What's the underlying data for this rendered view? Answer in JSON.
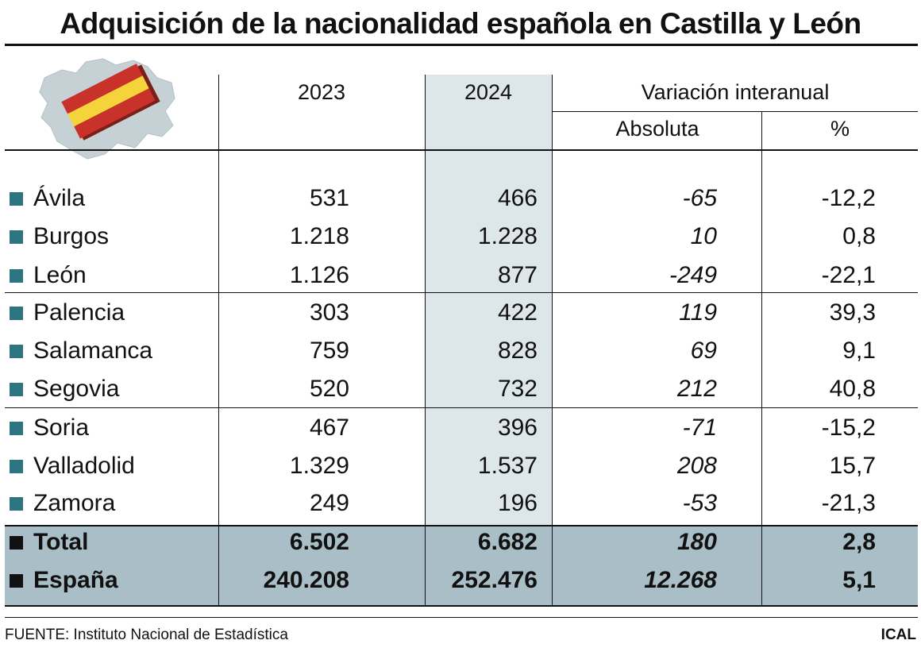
{
  "title": "Adquisición de la nacionalidad española en Castilla y León",
  "colors": {
    "column_2024": "#dde6e8",
    "totals_band": "#a9bec6",
    "bullet": "#2e7584",
    "bullet_total": "#111111",
    "flag_red": "#c8322a",
    "flag_yellow": "#f5d33a",
    "map_fill": "#c6d1d6"
  },
  "header": {
    "year1": "2023",
    "year2": "2024",
    "variation": "Variación interanual",
    "absolute": "Absoluta",
    "percent": "%"
  },
  "chart_data": {
    "type": "table",
    "columns": [
      "2023",
      "2024",
      "Absoluta",
      "%"
    ],
    "rows": [
      {
        "name": "Ávila",
        "y2023": "531",
        "y2024": "466",
        "abs": "-65",
        "pct": "-12,2"
      },
      {
        "name": "Burgos",
        "y2023": "1.218",
        "y2024": "1.228",
        "abs": "10",
        "pct": "0,8"
      },
      {
        "name": "León",
        "y2023": "1.126",
        "y2024": "877",
        "abs": "-249",
        "pct": "-22,1"
      },
      {
        "name": "Palencia",
        "y2023": "303",
        "y2024": "422",
        "abs": "119",
        "pct": "39,3"
      },
      {
        "name": "Salamanca",
        "y2023": "759",
        "y2024": "828",
        "abs": "69",
        "pct": "9,1"
      },
      {
        "name": "Segovia",
        "y2023": "520",
        "y2024": "732",
        "abs": "212",
        "pct": "40,8"
      },
      {
        "name": "Soria",
        "y2023": "467",
        "y2024": "396",
        "abs": "-71",
        "pct": "-15,2"
      },
      {
        "name": "Valladolid",
        "y2023": "1.329",
        "y2024": "1.537",
        "abs": "208",
        "pct": "15,7"
      },
      {
        "name": "Zamora",
        "y2023": "249",
        "y2024": "196",
        "abs": "-53",
        "pct": "-21,3"
      }
    ],
    "totals": [
      {
        "name": "Total",
        "y2023": "6.502",
        "y2024": "6.682",
        "abs": "180",
        "pct": "2,8"
      },
      {
        "name": "España",
        "y2023": "240.208",
        "y2024": "252.476",
        "abs": "12.268",
        "pct": "5,1"
      }
    ]
  },
  "footer": {
    "source": "FUENTE: Instituto Nacional de Estadística",
    "credit": "ICAL"
  }
}
